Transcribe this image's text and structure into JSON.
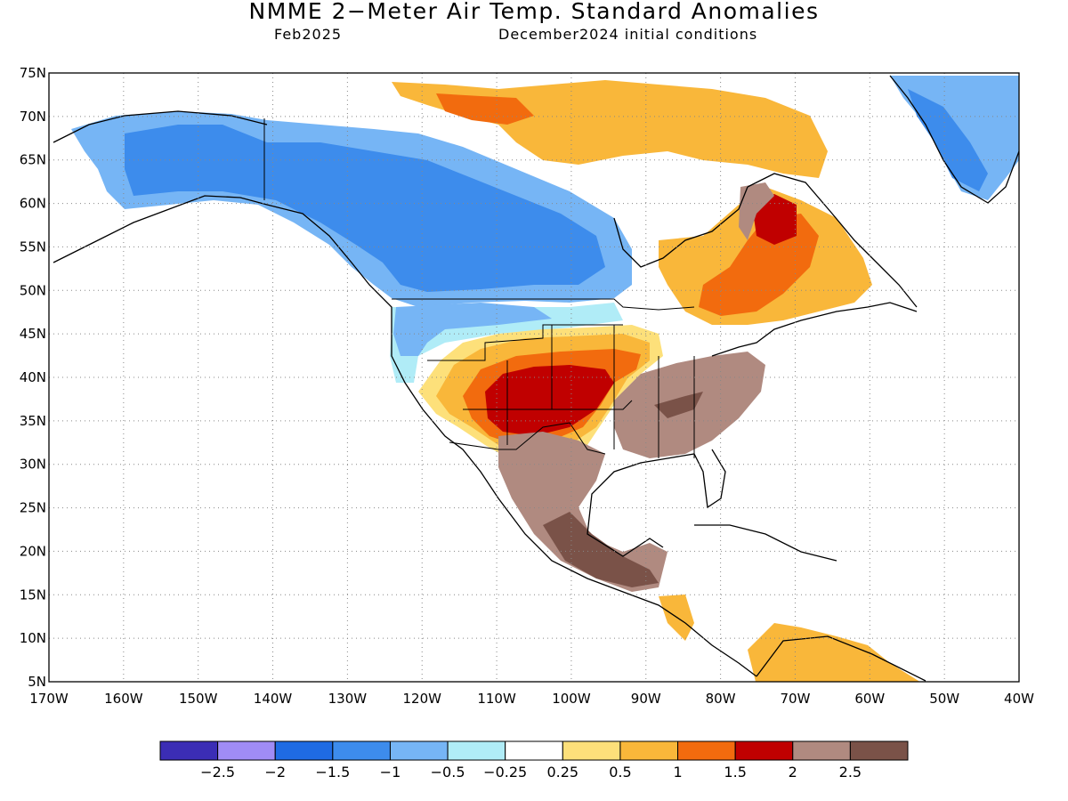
{
  "header": {
    "title": "NMME 2−Meter Air Temp. Standard Anomalies",
    "valid_month": "Feb2025",
    "init": "December2024 initial conditions"
  },
  "axes": {
    "lat_labels": [
      "75N",
      "70N",
      "65N",
      "60N",
      "55N",
      "50N",
      "45N",
      "40N",
      "35N",
      "30N",
      "25N",
      "20N",
      "15N",
      "10N",
      "5N"
    ],
    "lon_labels": [
      "170W",
      "160W",
      "150W",
      "140W",
      "130W",
      "120W",
      "110W",
      "100W",
      "90W",
      "80W",
      "70W",
      "60W",
      "50W",
      "40W"
    ]
  },
  "colorbar": {
    "colors": [
      "#3b2db5",
      "#a08cf5",
      "#1f6be3",
      "#3d8cec",
      "#76b5f5",
      "#b0ecf7",
      "#ffffff",
      "#fde07a",
      "#f9b73a",
      "#f26b0e",
      "#c00000",
      "#b08a80",
      "#7a5248"
    ],
    "labels": [
      "−2.5",
      "−2",
      "−1.5",
      "−1",
      "−0.5",
      "−0.25",
      "0.25",
      "0.5",
      "1",
      "1.5",
      "2",
      "2.5"
    ]
  },
  "legend_colors": {
    "ocean": "#ffffff",
    "coast": "#000000"
  }
}
